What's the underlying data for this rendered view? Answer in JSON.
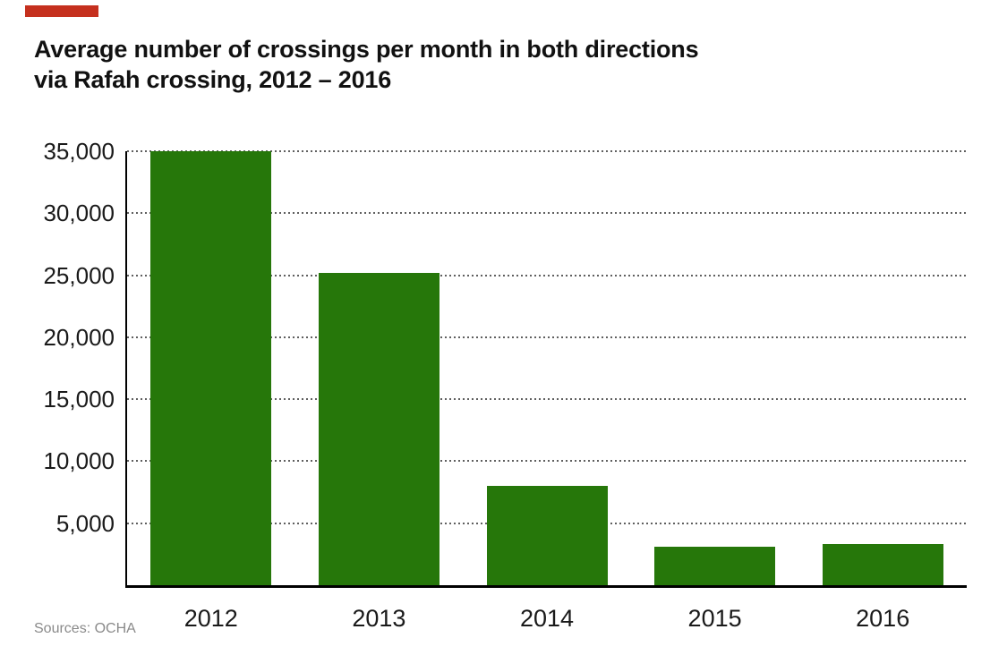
{
  "brand": {
    "color": "#c5301e"
  },
  "title": {
    "line1": "Average number of crossings per month in both directions",
    "line2": "via Rafah crossing, 2012 – 2016"
  },
  "source": {
    "text": "Sources: OCHA"
  },
  "chart_data": {
    "type": "bar",
    "title": "Average number of crossings per month in both directions via Rafah crossing, 2012 – 2016",
    "categories": [
      "2012",
      "2013",
      "2014",
      "2015",
      "2016"
    ],
    "values": [
      35000,
      25200,
      8000,
      3100,
      3300
    ],
    "bar_color": "#26770a",
    "axis_color": "#000000",
    "gridline_color": "#5f5f5f",
    "grid": "horizontal-dotted",
    "legend": "none",
    "xlabel": "",
    "ylabel": "",
    "ylim": [
      0,
      35000
    ],
    "yticks": [
      5000,
      10000,
      15000,
      20000,
      25000,
      30000,
      35000
    ],
    "ytick_labels": [
      "5,000",
      "10,000",
      "15,000",
      "20,000",
      "25,000",
      "30,000",
      "35,000"
    ]
  }
}
